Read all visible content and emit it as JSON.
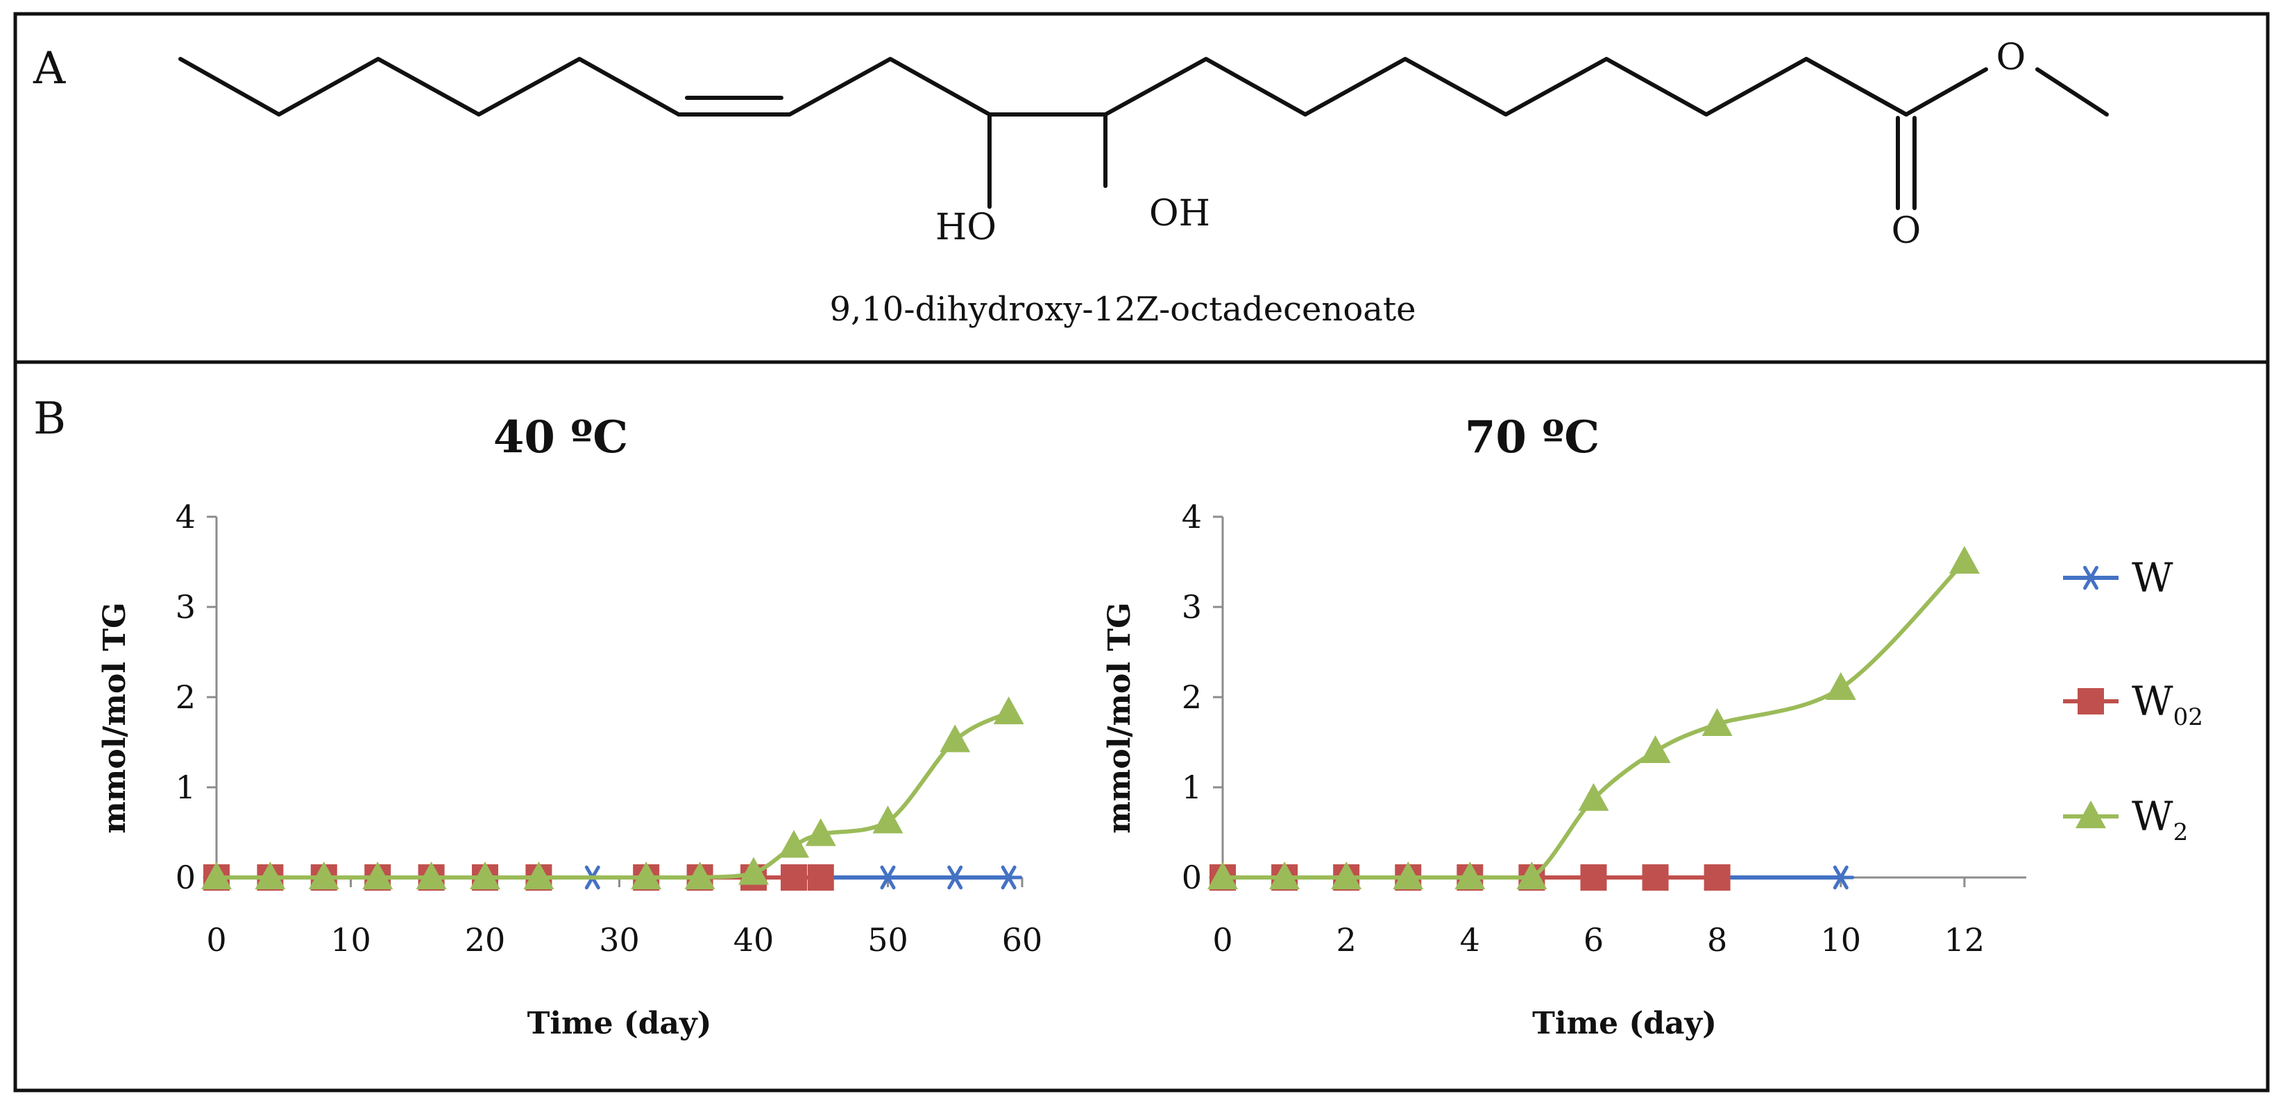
{
  "panel_a": {
    "letter": "A",
    "labels": {
      "ho": "HO",
      "oh": "OH",
      "ester_o": "O",
      "carbonyl_o": "O"
    },
    "compound_name": "9,10-dihydroxy-12Z-octadecenoate"
  },
  "panel_b": {
    "letter": "B"
  },
  "legend": [
    {
      "label": "W",
      "subscript": "",
      "marker": "asterisk",
      "color": "#4472C4"
    },
    {
      "label": "W",
      "subscript": "02",
      "marker": "square",
      "color": "#C0504D"
    },
    {
      "label": "W",
      "subscript": "2",
      "marker": "triangle",
      "color": "#9BBB59"
    }
  ],
  "chart_data": [
    {
      "type": "line",
      "title": "40 ºC",
      "xlabel": "Time (day)",
      "ylabel": "mmol/mol TG",
      "xlim": [
        0,
        60
      ],
      "ylim": [
        0,
        4
      ],
      "xticks": [
        0,
        10,
        20,
        30,
        40,
        50,
        60
      ],
      "yticks": [
        0,
        1,
        2,
        3,
        4
      ],
      "series": [
        {
          "name": "W",
          "marker": "asterisk",
          "color": "#4472C4",
          "x": [
            0,
            4,
            8,
            12,
            16,
            20,
            24,
            28,
            32,
            36,
            40,
            43,
            45,
            50,
            55,
            59
          ],
          "y": [
            0,
            0,
            0,
            0,
            0,
            0,
            0,
            0,
            0,
            0,
            0,
            0,
            0,
            0,
            0,
            0
          ]
        },
        {
          "name": "W02",
          "marker": "square",
          "color": "#C0504D",
          "x": [
            0,
            4,
            8,
            12,
            16,
            20,
            24,
            32,
            36,
            40,
            43,
            45
          ],
          "y": [
            0,
            0,
            0,
            0,
            0,
            0,
            0,
            0,
            0,
            0,
            0,
            0
          ]
        },
        {
          "name": "W2",
          "marker": "triangle",
          "color": "#9BBB59",
          "x": [
            0,
            4,
            8,
            12,
            16,
            20,
            24,
            32,
            36,
            40,
            43,
            45,
            50,
            55,
            59
          ],
          "y": [
            0,
            0,
            0,
            0,
            0,
            0,
            0,
            0,
            0,
            0.05,
            0.35,
            0.48,
            0.62,
            1.52,
            1.83
          ]
        }
      ]
    },
    {
      "type": "line",
      "title": "70 ºC",
      "xlabel": "Time (day)",
      "ylabel": "mmol/mol TG",
      "xlim": [
        0,
        13
      ],
      "ylim": [
        0,
        4
      ],
      "xticks": [
        0,
        2,
        4,
        6,
        8,
        10,
        12
      ],
      "yticks": [
        0,
        1,
        2,
        3,
        4
      ],
      "series": [
        {
          "name": "W",
          "marker": "asterisk",
          "color": "#4472C4",
          "x": [
            0,
            1,
            2,
            3,
            4,
            5,
            6,
            7,
            8,
            10
          ],
          "y": [
            0,
            0,
            0,
            0,
            0,
            0,
            0,
            0,
            0,
            0
          ]
        },
        {
          "name": "W02",
          "marker": "square",
          "color": "#C0504D",
          "x": [
            0,
            1,
            2,
            3,
            4,
            5,
            6,
            7,
            8
          ],
          "y": [
            0,
            0,
            0,
            0,
            0,
            0,
            0,
            0,
            0
          ]
        },
        {
          "name": "W2",
          "marker": "triangle",
          "color": "#9BBB59",
          "x": [
            0,
            1,
            2,
            3,
            4,
            5,
            6,
            7,
            8,
            10,
            12
          ],
          "y": [
            0,
            0,
            0,
            0,
            0,
            0,
            0.87,
            1.4,
            1.7,
            2.1,
            3.5
          ]
        }
      ]
    }
  ]
}
